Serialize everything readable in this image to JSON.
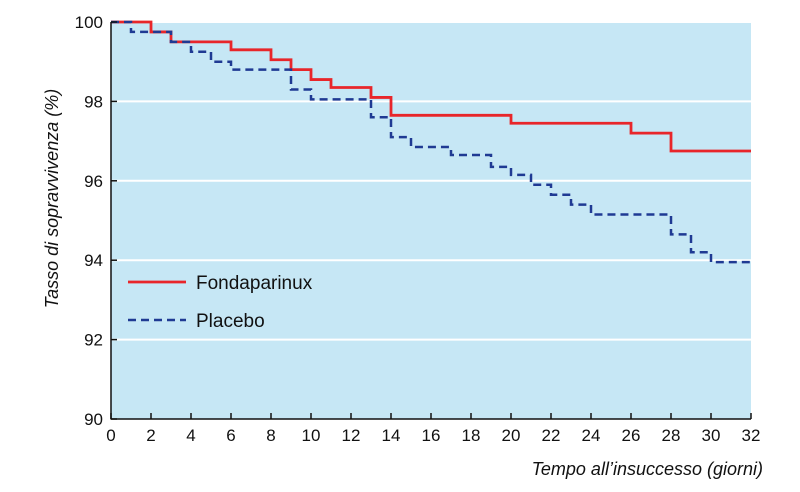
{
  "chart_data": {
    "type": "line",
    "title": "",
    "xlabel": "Tempo all’insuccesso (giorni)",
    "ylabel": "Tasso di sopravvivenza (%)",
    "xlim": [
      0,
      32
    ],
    "ylim": [
      90,
      100
    ],
    "xticks": [
      0,
      2,
      4,
      6,
      8,
      10,
      12,
      14,
      16,
      18,
      20,
      22,
      24,
      26,
      28,
      30,
      32
    ],
    "yticks": [
      90,
      92,
      94,
      96,
      98,
      100
    ],
    "grid": "horizontal",
    "legend_position": "left",
    "step": true,
    "background_color": "#c6e7f5",
    "series": [
      {
        "name": "Fondaparinux",
        "color": "#e8262a",
        "line_style": "solid",
        "x": [
          0,
          2,
          3,
          6,
          8,
          9,
          10,
          11,
          13,
          14,
          20,
          26,
          28,
          32
        ],
        "y": [
          100,
          99.75,
          99.5,
          99.3,
          99.05,
          98.8,
          98.55,
          98.35,
          98.1,
          97.65,
          97.45,
          97.2,
          96.75,
          96.75
        ]
      },
      {
        "name": "Placebo",
        "color": "#1f3a93",
        "line_style": "dashed",
        "x": [
          0,
          1,
          3,
          4,
          5,
          6,
          9,
          10,
          13,
          14,
          15,
          17,
          19,
          20,
          21,
          22,
          23,
          24,
          28,
          29,
          30,
          32
        ],
        "y": [
          100,
          99.75,
          99.5,
          99.25,
          99.0,
          98.8,
          98.3,
          98.05,
          97.6,
          97.1,
          96.85,
          96.65,
          96.35,
          96.15,
          95.9,
          95.65,
          95.4,
          95.15,
          94.65,
          94.2,
          93.95,
          93.95
        ]
      }
    ]
  }
}
